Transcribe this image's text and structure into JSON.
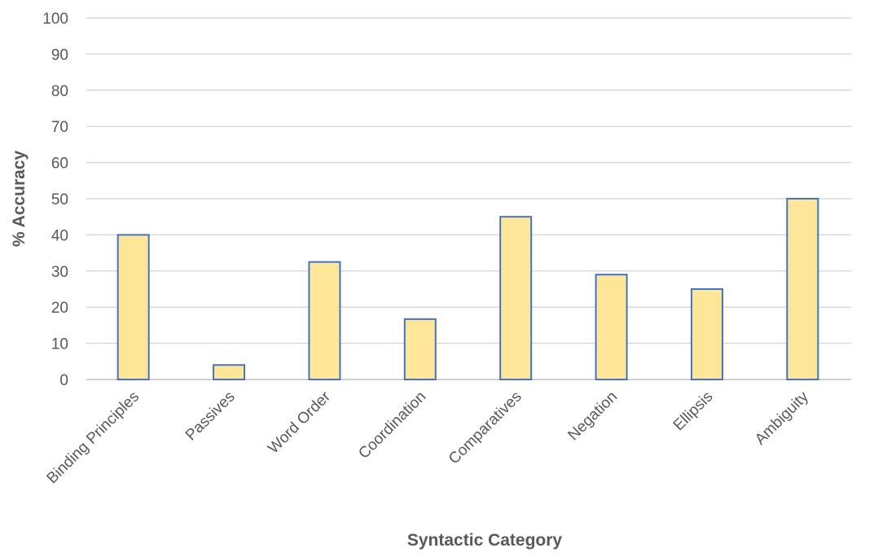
{
  "chart_data": {
    "type": "bar",
    "title": "",
    "xlabel": "Syntactic Category",
    "ylabel": "% Accuracy",
    "categories": [
      "Binding Principles",
      "Passives",
      "Word Order",
      "Coordination",
      "Comparatives",
      "Negation",
      "Ellipsis",
      "Ambiguity"
    ],
    "values": [
      40,
      4,
      32.5,
      16.7,
      45,
      29,
      25,
      50
    ],
    "ylim": [
      0,
      100
    ],
    "yticks": [
      "0",
      "10",
      "20",
      "30",
      "40",
      "50",
      "60",
      "70",
      "80",
      "90",
      "100"
    ],
    "grid": true,
    "legend": "none",
    "bar_fill": "#ffe699",
    "bar_stroke": "#4472c4"
  }
}
